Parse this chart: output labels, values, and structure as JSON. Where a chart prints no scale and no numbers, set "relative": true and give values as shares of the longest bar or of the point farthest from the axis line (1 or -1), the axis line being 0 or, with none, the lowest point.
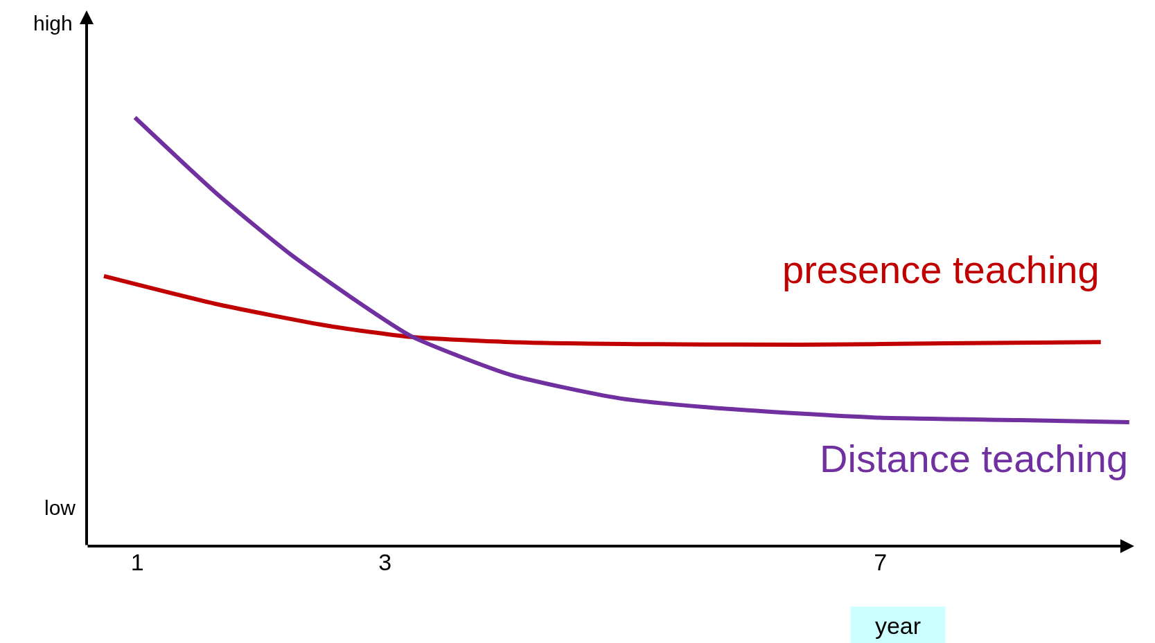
{
  "chart_data": {
    "type": "line",
    "relative": true,
    "xlabel": "year",
    "xlim": [
      0.59,
      9.05
    ],
    "xticks": [
      1,
      3,
      7
    ],
    "legend": false,
    "marker": "none",
    "line_style": "solid",
    "annotations": [
      "high",
      "low"
    ],
    "series": [
      {
        "name": "presence teaching",
        "color": "#c00000",
        "x": [
          0.73,
          1.65,
          2.54,
          3.21,
          4.01,
          5.19,
          6.36,
          7.54,
          8.78
        ],
        "values": [
          0.63,
          0.564,
          0.514,
          0.488,
          0.476,
          0.471,
          0.47,
          0.473,
          0.476
        ]
      },
      {
        "name": "Distance teaching",
        "color": "#7030a0",
        "x": [
          0.98,
          1.65,
          2.24,
          2.83,
          3.21,
          4.01,
          4.89,
          5.77,
          6.95,
          8.13,
          9.01
        ],
        "values": [
          1.0,
          0.82,
          0.68,
          0.56,
          0.49,
          0.4,
          0.345,
          0.32,
          0.3,
          0.294,
          0.289
        ]
      }
    ]
  }
}
